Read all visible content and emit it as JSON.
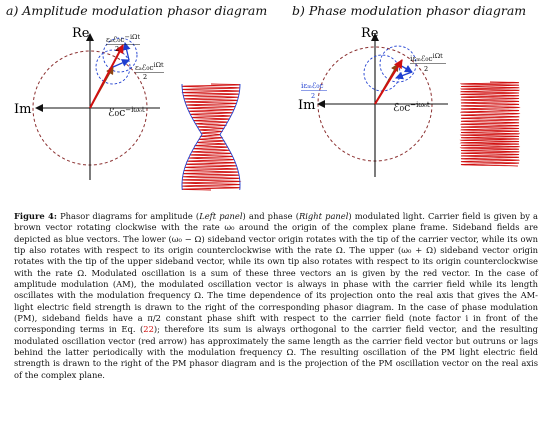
{
  "panels": {
    "left_title": "a) Amplitude modulation phasor diagram",
    "right_title": "b) Phase modulation phasor diagram"
  },
  "axes": {
    "re": "Re",
    "im": "Im"
  },
  "labels": {
    "carrier_main": "ℰ₀c",
    "carrier_exp": "−iω₀t",
    "am_upper": "εₐℰ₀c",
    "am_upper_exp": "−iΩt",
    "am_lower": "εₐℰ₀c",
    "am_lower_exp": "iΩt",
    "denom": "2",
    "pm_left": "iεₘℰ₀c",
    "pm_right": "iεₘℰ₀c",
    "pm_right_exp": "iΩt"
  },
  "colors": {
    "carrier": "#8b4513",
    "sideband": "#1f3fd0",
    "resultant": "#d01010",
    "orbit": "#8b3030"
  },
  "caption": {
    "label": "Figure 4:",
    "t1": " Phasor diagrams for amplitude (",
    "left": "Left panel",
    "t2": ") and phase (",
    "right": "Right panel",
    "t3": ") modulated light. Carrier field is given by a brown vector rotating clockwise with the rate ω₀ around the origin of the complex plane frame. Sideband fields are depicted as blue vectors. The lower (ω₀ − Ω) sideband vector origin rotates with the tip of the carrier vector, while its own tip also rotates with respect to its origin counterclockwise with the rate Ω. The upper (ω₀ + Ω) sideband vector origin rotates with the tip of the upper sideband vector, while its own tip also rotates with respect to its origin counterclockwise with the rate Ω. Modulated oscillation is a sum of these three vectors an is given by the red vector. In the case of amplitude modulation (AM), the modulated oscillation vector is always in phase with the carrier field while its length oscillates with the modulation frequency Ω. The time dependence of its projection onto the real axis that gives the AM-light electric field strength is drawn to the right of the corresponding phasor diagram. In the case of phase modulation (PM), sideband fields have a π/2 constant phase shift with respect to the carrier field (note factor i in front of the corresponding terms in Eq. (",
    "ref": "22",
    "t4": "); therefore its sum is always orthogonal to the carrier field vector, and the resulting modulated oscillation vector (red arrow) has approximately the same length as the carrier field vector but outruns or lags behind the latter periodically with the modulation frequency Ω. The resulting oscillation of the PM light electric field strength is drawn to the right of the PM phasor diagram and is the projection of the PM oscillation vector on the real axis of the complex plane."
  }
}
